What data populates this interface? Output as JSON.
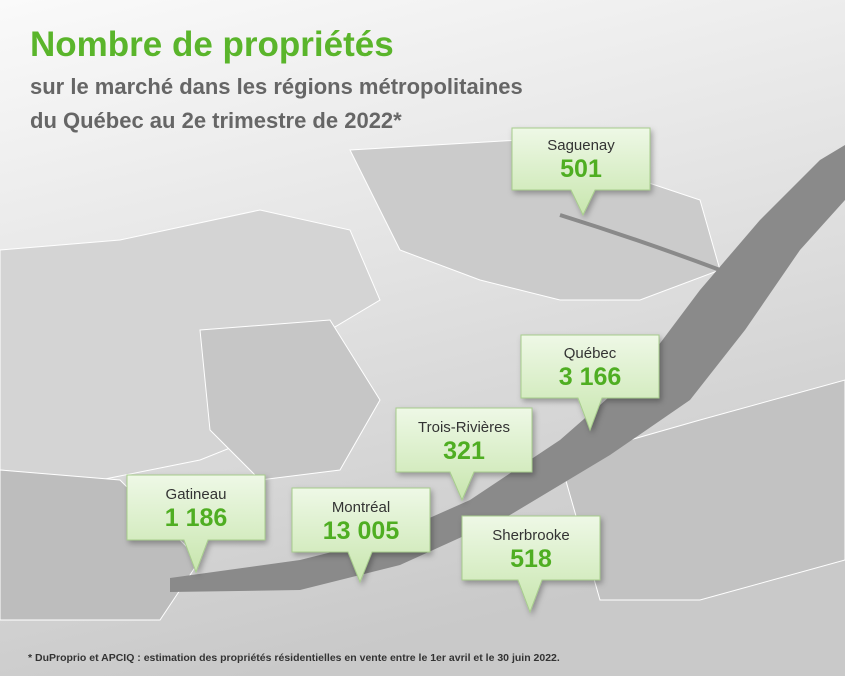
{
  "header": {
    "title": "Nombre de propriétés",
    "subtitle": [
      "sur le marché dans les régions métropolitaines",
      "du Québec au 2e trimestre de 2022*"
    ]
  },
  "regions": [
    {
      "name": "Saguenay",
      "value": "501"
    },
    {
      "name": "Québec",
      "value": "3 166"
    },
    {
      "name": "Trois-Rivières",
      "value": "321"
    },
    {
      "name": "Gatineau",
      "value": "1 186"
    },
    {
      "name": "Montréal",
      "value": "13 005"
    },
    {
      "name": "Sherbrooke",
      "value": "518"
    }
  ],
  "footnote": "* DuProprio et APCIQ : estimation des propriétés résidentielles en vente entre le 1er avril et le 30 juin 2022."
}
